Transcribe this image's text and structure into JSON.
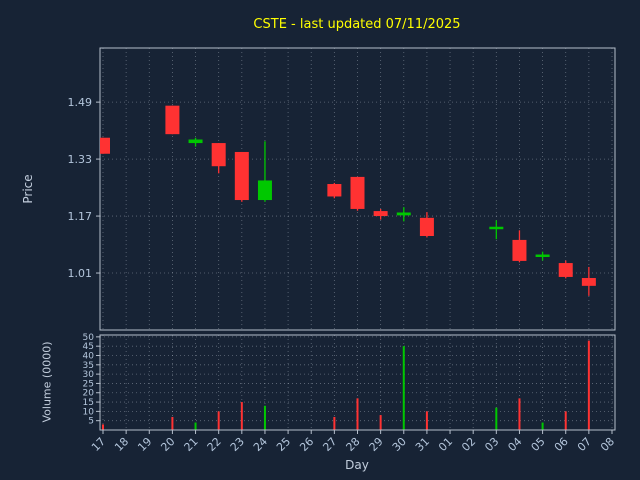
{
  "chart_data": {
    "type": "candlestick",
    "title": "CSTE - last updated 07/11/2025",
    "xlabel": "Day",
    "ylabel": "Price",
    "ylabel2": "Volume (0000)",
    "x_categories": [
      "17",
      "18",
      "19",
      "20",
      "21",
      "22",
      "23",
      "24",
      "25",
      "26",
      "27",
      "28",
      "29",
      "30",
      "31",
      "01",
      "02",
      "03",
      "04",
      "05",
      "06",
      "07",
      "08"
    ],
    "price_ticks": [
      1.49,
      1.33,
      1.17,
      1.01
    ],
    "price_range": [
      0.85,
      1.642
    ],
    "volume_ticks": [
      50,
      45,
      40,
      35,
      30,
      25,
      20,
      15,
      10,
      5
    ],
    "volume_range": [
      0,
      51
    ],
    "grid": true,
    "legend": "none",
    "candles": [
      {
        "day": "17",
        "open": 1.39,
        "high": 1.39,
        "low": 1.345,
        "close": 1.345,
        "volume": 3
      },
      {
        "day": "20",
        "open": 1.48,
        "high": 1.48,
        "low": 1.4,
        "close": 1.4,
        "volume": 7
      },
      {
        "day": "21",
        "open": 1.375,
        "high": 1.39,
        "low": 1.365,
        "close": 1.385,
        "volume": 4
      },
      {
        "day": "22",
        "open": 1.375,
        "high": 1.375,
        "low": 1.29,
        "close": 1.31,
        "volume": 10
      },
      {
        "day": "23",
        "open": 1.35,
        "high": 1.35,
        "low": 1.21,
        "close": 1.215,
        "volume": 15
      },
      {
        "day": "24",
        "open": 1.215,
        "high": 1.38,
        "low": 1.21,
        "close": 1.27,
        "volume": 13
      },
      {
        "day": "27",
        "open": 1.26,
        "high": 1.263,
        "low": 1.22,
        "close": 1.225,
        "volume": 7
      },
      {
        "day": "28",
        "open": 1.28,
        "high": 1.28,
        "low": 1.185,
        "close": 1.19,
        "volume": 17
      },
      {
        "day": "29",
        "open": 1.184,
        "high": 1.19,
        "low": 1.16,
        "close": 1.17,
        "volume": 8
      },
      {
        "day": "30",
        "open": 1.172,
        "high": 1.195,
        "low": 1.155,
        "close": 1.18,
        "volume": 45
      },
      {
        "day": "31",
        "open": 1.165,
        "high": 1.181,
        "low": 1.11,
        "close": 1.114,
        "volume": 10
      },
      {
        "day": "03",
        "open": 1.133,
        "high": 1.158,
        "low": 1.105,
        "close": 1.14,
        "volume": 12
      },
      {
        "day": "04",
        "open": 1.103,
        "high": 1.13,
        "low": 1.04,
        "close": 1.044,
        "volume": 17
      },
      {
        "day": "05",
        "open": 1.055,
        "high": 1.07,
        "low": 1.045,
        "close": 1.062,
        "volume": 4
      },
      {
        "day": "06",
        "open": 1.038,
        "high": 1.045,
        "low": 0.995,
        "close": 0.999,
        "volume": 10
      },
      {
        "day": "07",
        "open": 0.996,
        "high": 1.027,
        "low": 0.946,
        "close": 0.974,
        "volume": 48
      }
    ],
    "colors": {
      "background": "#172335",
      "up": "#00c800",
      "down": "#ff3232",
      "grid": "#cdd6e0",
      "spine": "#b6bfcc",
      "tick_label": "#b4c6dc",
      "axis_label": "#c3cedd",
      "title": "#ffff00"
    }
  }
}
